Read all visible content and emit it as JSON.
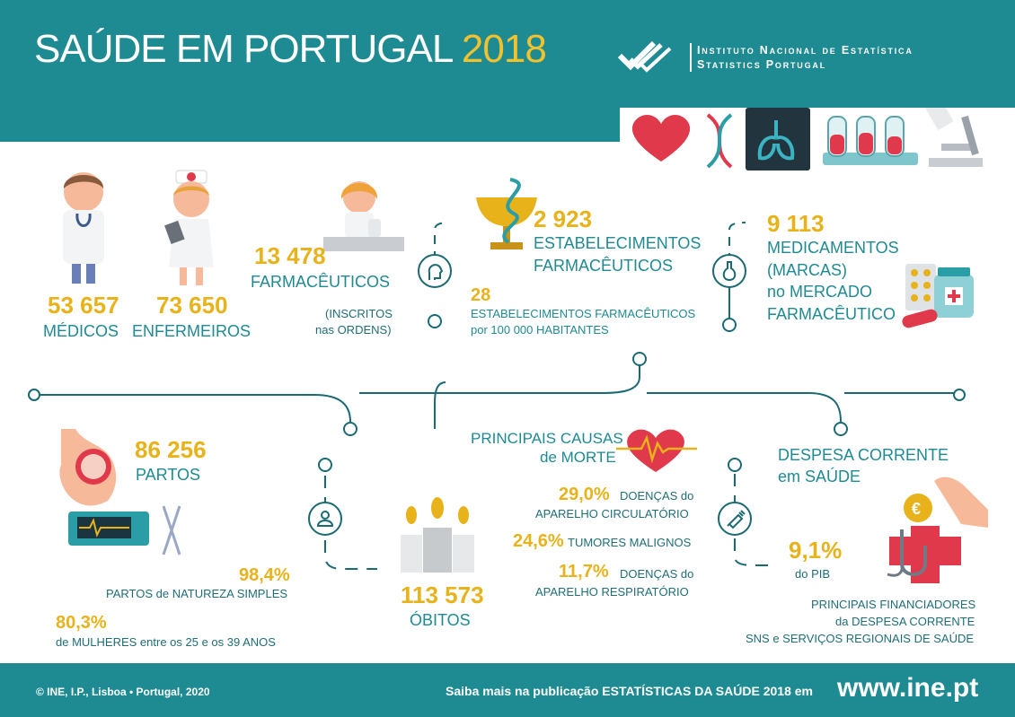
{
  "header": {
    "title": "SAÚDE EM PORTUGAL",
    "year": "2018",
    "org_line1": "Instituto Nacional de Estatística",
    "org_line2": "Statistics Portugal"
  },
  "medicos": {
    "value": "53 657",
    "label": "MÉDICOS"
  },
  "enfermeiros": {
    "value": "73 650",
    "label": "ENFERMEIROS"
  },
  "farmaceuticos": {
    "value": "13 478",
    "label": "FARMACÊUTICOS",
    "note1": "(INSCRITOS",
    "note2": "nas ORDENS)"
  },
  "estabelecimentos": {
    "value": "2 923",
    "label1": "ESTABELECIMENTOS",
    "label2": "FARMACÊUTICOS",
    "rate": "28",
    "rate_label1": "ESTABELECIMENTOS FARMACÊUTICOS",
    "rate_label2": "por 100 000 HABITANTES"
  },
  "medicamentos": {
    "value": "9 113",
    "label1": "MEDICAMENTOS",
    "label2": "(MARCAS)",
    "label3": "no MERCADO",
    "label4": "FARMACÊUTICO"
  },
  "partos": {
    "value": "86 256",
    "label": "PARTOS",
    "pct_simple": "98,4%",
    "pct_simple_label": "PARTOS de NATUREZA SIMPLES",
    "pct_women": "80,3%",
    "pct_women_label": "de  MULHERES entre os 25 e os  39 ANOS"
  },
  "obitos": {
    "value": "113 573",
    "label": "ÓBITOS"
  },
  "causas": {
    "title1": "PRINCIPAIS CAUSAS",
    "title2": "de MORTE",
    "items": [
      {
        "pct": "29,0%",
        "label1": "DOENÇAS do",
        "label2": "APARELHO CIRCULATÓRIO"
      },
      {
        "pct": "24,6%",
        "label1": "TUMORES MALIGNOS",
        "label2": ""
      },
      {
        "pct": "11,7%",
        "label1": "DOENÇAS do",
        "label2": "APARELHO RESPIRATÓRIO"
      }
    ]
  },
  "despesa": {
    "title1": "DESPESA CORRENTE",
    "title2": "em SAÚDE",
    "pct": "9,1%",
    "pct_label": "do PIB",
    "fin1": "PRINCIPAIS FINANCIADORES",
    "fin2": "da DESPESA CORRENTE",
    "fin3": "SNS e SERVIÇOS REGIONAIS DE SAÚDE"
  },
  "footer": {
    "copyright": "© INE, I.P., Lisboa • Portugal, 2020",
    "more": "Saiba mais na publicação ESTATÍSTICAS DA SAÚDE 2018 em",
    "url": "www.ine.pt"
  },
  "colors": {
    "teal": "#1e8b93",
    "gold": "#e8b21a",
    "red": "#e0394b"
  }
}
